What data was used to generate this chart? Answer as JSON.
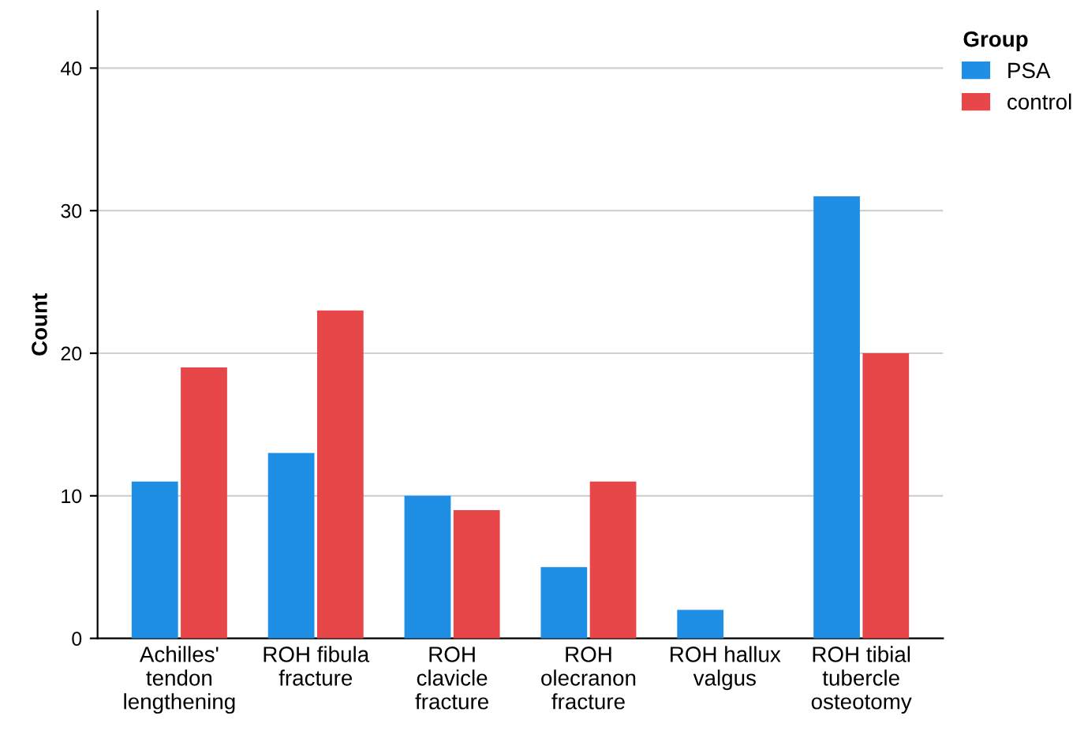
{
  "chart_data": {
    "type": "bar",
    "ylabel": "Count",
    "legend_title": "Group",
    "categories": [
      "Achilles'\ntendon\nlengthening",
      "ROH fibula\nfracture",
      "ROH\nclavicle\nfracture",
      "ROH\nolecranon\nfracture",
      "ROH hallux\nvalgus",
      "ROH tibial\ntubercle\nosteotomy"
    ],
    "series": [
      {
        "name": "PSA",
        "color": "#1f8fe6",
        "values": [
          11,
          13,
          10,
          5,
          2,
          31
        ]
      },
      {
        "name": "control",
        "color": "#e8474a",
        "values": [
          19,
          23,
          9,
          11,
          null,
          20
        ]
      }
    ],
    "ylim": [
      0,
      44
    ],
    "yticks": [
      0,
      10,
      20,
      30,
      40
    ],
    "grid": "y",
    "legend": "top right"
  }
}
